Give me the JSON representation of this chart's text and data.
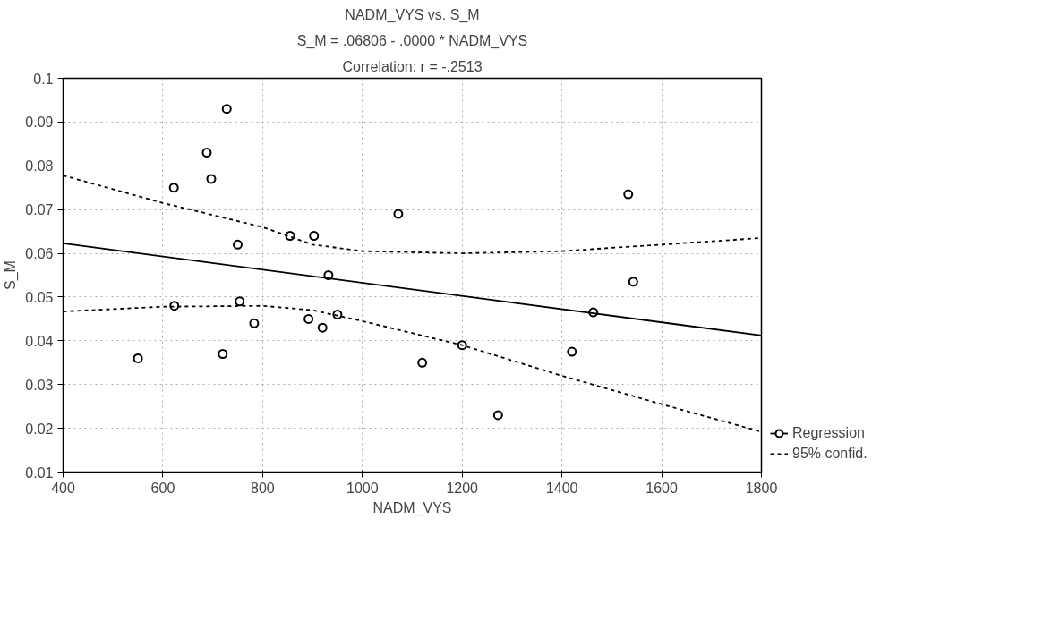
{
  "chart_data": {
    "type": "scatter",
    "title": "NADM_VYS vs. S_M",
    "subtitle": "S_M = .06806 - .0000 * NADM_VYS",
    "annotations": [
      "Correlation: r = -.2513"
    ],
    "xlabel": "NADM_VYS",
    "ylabel": "S_M",
    "xlim": [
      400,
      1800
    ],
    "xticks": [
      400,
      600,
      800,
      1000,
      1200,
      1400,
      1600,
      1800
    ],
    "ylim": [
      0.01,
      0.1
    ],
    "yticks": [
      0.01,
      0.02,
      0.03,
      0.04,
      0.05,
      0.06,
      0.07,
      0.08,
      0.09,
      0.1
    ],
    "grid": true,
    "legend": "bottom right",
    "series": [
      {
        "color": "#000000",
        "marker": "circle",
        "x": [
          550,
          622,
          623,
          688,
          697,
          720,
          728,
          750,
          754,
          783,
          855,
          892,
          903,
          920,
          932,
          950,
          1072,
          1120,
          1200,
          1272,
          1420,
          1463,
          1533,
          1543
        ],
        "values": [
          0.036,
          0.075,
          0.048,
          0.083,
          0.077,
          0.037,
          0.093,
          0.062,
          0.049,
          0.044,
          0.064,
          0.045,
          0.064,
          0.043,
          0.055,
          0.046,
          0.069,
          0.035,
          0.039,
          0.023,
          0.0375,
          0.0465,
          0.0735,
          0.0535
        ]
      },
      {
        "type": "line",
        "name": "Regression",
        "color": "#000000",
        "line_style": "solid",
        "x": [
          400,
          1800
        ],
        "values": [
          0.0623,
          0.0412
        ]
      },
      {
        "type": "line",
        "name": "95% confid.",
        "color": "#000000",
        "line_style": "dashed",
        "x": [
          400,
          600,
          800,
          900,
          1000,
          1200,
          1400,
          1600,
          1800
        ],
        "values": [
          0.0778,
          0.0715,
          0.066,
          0.062,
          0.0605,
          0.06,
          0.0605,
          0.062,
          0.0635
        ]
      },
      {
        "type": "line",
        "color": "#000000",
        "line_style": "dashed",
        "x": [
          400,
          600,
          800,
          900,
          1000,
          1200,
          1400,
          1600,
          1800
        ],
        "values": [
          0.0467,
          0.0478,
          0.048,
          0.047,
          0.0445,
          0.039,
          0.032,
          0.0255,
          0.0192
        ]
      }
    ]
  }
}
